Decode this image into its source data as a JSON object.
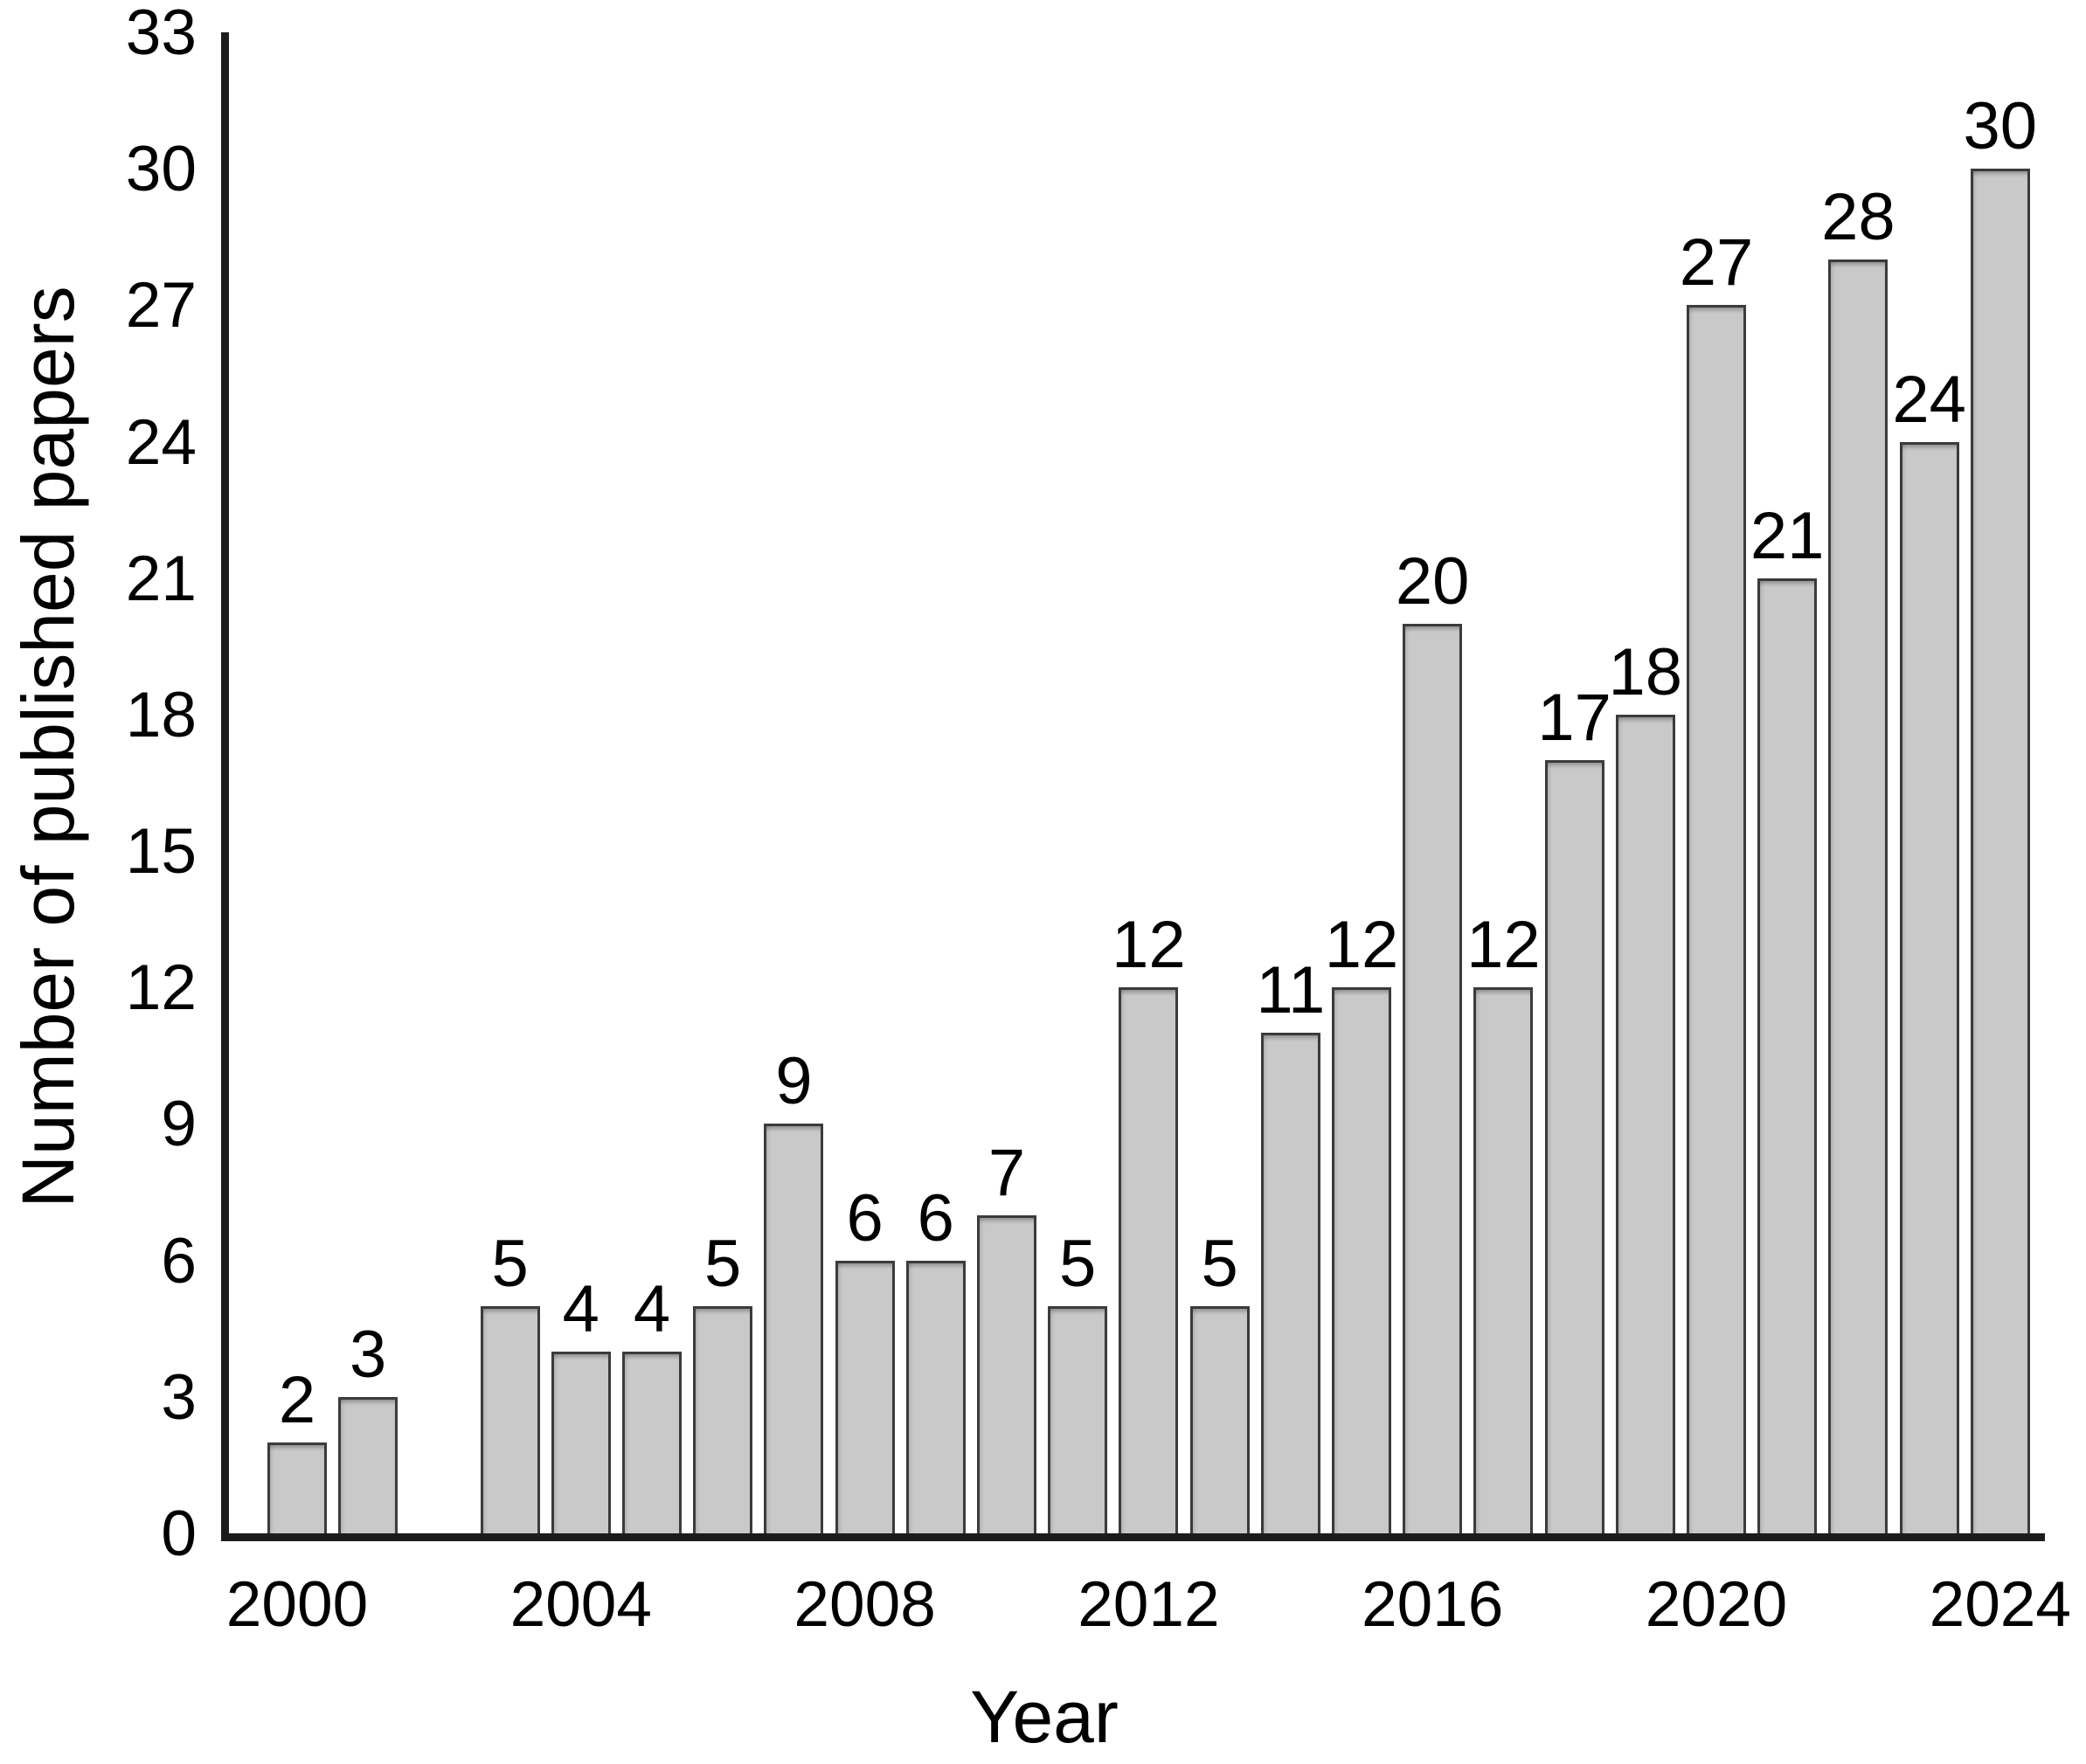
{
  "figure": {
    "background_color": "#ffffff"
  },
  "chart_data": {
    "type": "bar",
    "title": "",
    "xlabel": "Year",
    "ylabel": "Number of published papers",
    "points": [
      {
        "year": 2000,
        "value": 2
      },
      {
        "year": 2001,
        "value": 3
      },
      {
        "year": 2003,
        "value": 5
      },
      {
        "year": 2004,
        "value": 4
      },
      {
        "year": 2005,
        "value": 4
      },
      {
        "year": 2006,
        "value": 5
      },
      {
        "year": 2007,
        "value": 9
      },
      {
        "year": 2008,
        "value": 6
      },
      {
        "year": 2009,
        "value": 6
      },
      {
        "year": 2010,
        "value": 7
      },
      {
        "year": 2011,
        "value": 5
      },
      {
        "year": 2012,
        "value": 12
      },
      {
        "year": 2013,
        "value": 5
      },
      {
        "year": 2014,
        "value": 11
      },
      {
        "year": 2015,
        "value": 12
      },
      {
        "year": 2016,
        "value": 20
      },
      {
        "year": 2017,
        "value": 12
      },
      {
        "year": 2018,
        "value": 17
      },
      {
        "year": 2019,
        "value": 18
      },
      {
        "year": 2020,
        "value": 27
      },
      {
        "year": 2021,
        "value": 21
      },
      {
        "year": 2022,
        "value": 28
      },
      {
        "year": 2023,
        "value": 24
      },
      {
        "year": 2024,
        "value": 30
      }
    ],
    "missing_years": [
      2002
    ],
    "x_tick_years": [
      2000,
      2004,
      2008,
      2012,
      2016,
      2020,
      2024
    ],
    "y_ticks": [
      0,
      3,
      6,
      9,
      12,
      15,
      18,
      21,
      24,
      27,
      30,
      33
    ],
    "ylim": [
      0,
      33
    ],
    "grid": false,
    "legend": "none",
    "data_labels": true,
    "bar_fill_color": "#c9c9c9",
    "bar_border_color": "#3b3b3b",
    "axis_color": "#1c1c1c",
    "text_color": "#000000"
  }
}
